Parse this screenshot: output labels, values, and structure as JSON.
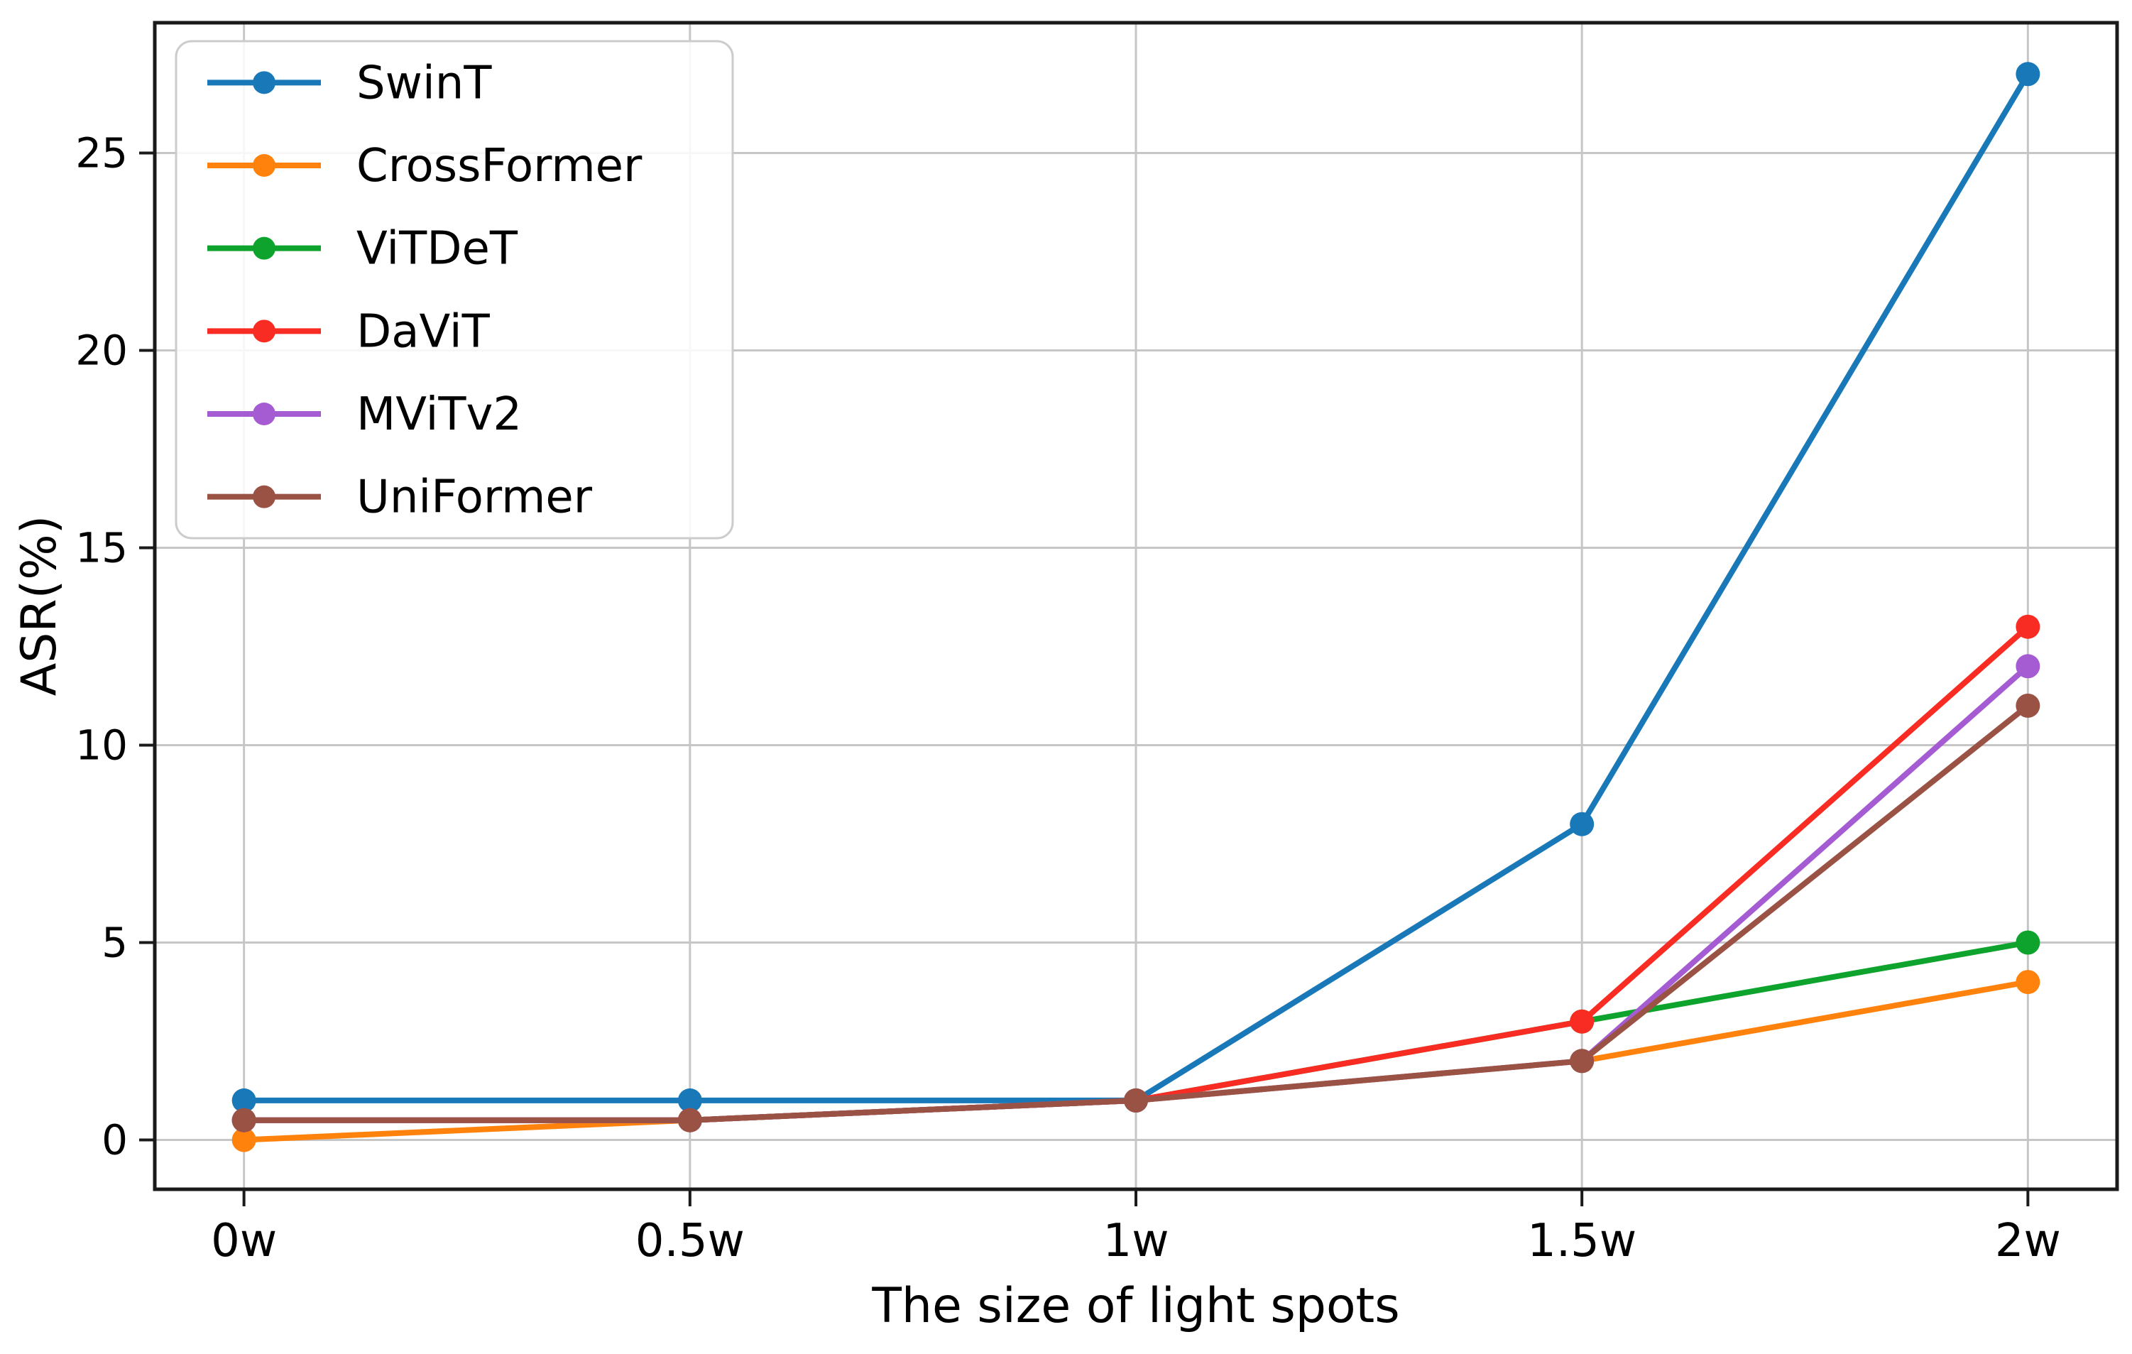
{
  "chart_data": {
    "type": "line",
    "xlabel": "The size of light spots",
    "ylabel": "ASR(%)",
    "categories": [
      "0w",
      "0.5w",
      "1w",
      "1.5w",
      "2w"
    ],
    "yticks": [
      0,
      5,
      10,
      15,
      20,
      25
    ],
    "ylim": [
      -1.25,
      28.3
    ],
    "grid": true,
    "legend_position": "upper left",
    "series": [
      {
        "name": "SwinT",
        "color": "#1878b8",
        "values": [
          1,
          1,
          1,
          8,
          27
        ]
      },
      {
        "name": "CrossFormer",
        "color": "#ff820d",
        "values": [
          0,
          0.5,
          1,
          2,
          4
        ]
      },
      {
        "name": "ViTDeT",
        "color": "#0da32c",
        "values": [
          0.5,
          0.5,
          1,
          3,
          5
        ]
      },
      {
        "name": "DaViT",
        "color": "#f92c23",
        "values": [
          0.5,
          0.5,
          1,
          3,
          13
        ]
      },
      {
        "name": "MViTv2",
        "color": "#a55cd3",
        "values": [
          0.5,
          0.5,
          1,
          2,
          12
        ]
      },
      {
        "name": "UniFormer",
        "color": "#9a5244",
        "values": [
          0.5,
          0.5,
          1,
          2,
          11
        ]
      }
    ],
    "style": {
      "grid_color": "#c6c6c6",
      "spine_color": "#1a1a1a",
      "legend_border_color": "#cccccc",
      "background": "#ffffff"
    }
  }
}
